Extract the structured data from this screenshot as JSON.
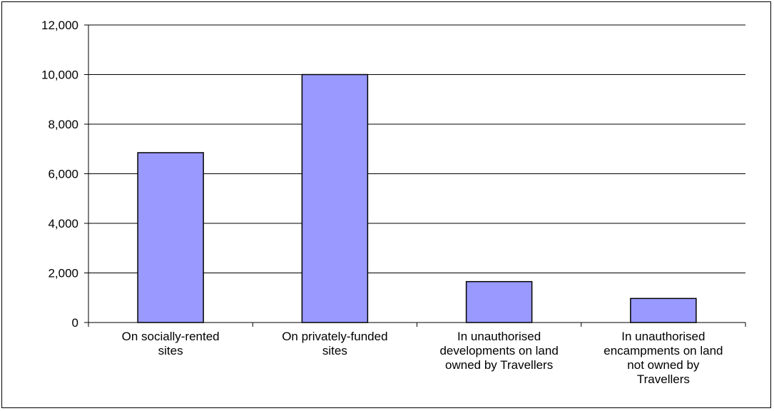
{
  "chart_data": {
    "type": "bar",
    "title": "",
    "xlabel": "",
    "ylabel": "",
    "categories": [
      [
        "On socially-rented",
        "sites"
      ],
      [
        "On privately-funded",
        "sites"
      ],
      [
        "In unauthorised",
        "developments on land",
        "owned by Travellers"
      ],
      [
        "In unauthorised",
        "encampments on land",
        "not owned by",
        "Travellers"
      ]
    ],
    "values": [
      6850,
      10000,
      1650,
      970
    ],
    "ylim": [
      0,
      12000
    ],
    "yticks": [
      0,
      2000,
      4000,
      6000,
      8000,
      10000,
      12000
    ],
    "ytick_labels": [
      "0",
      "2,000",
      "4,000",
      "6,000",
      "8,000",
      "10,000",
      "12,000"
    ],
    "grid": true,
    "legend": "none",
    "colors": {
      "bar_fill": "#9999ff",
      "bar_stroke": "#000000",
      "grid": "#000000"
    }
  }
}
